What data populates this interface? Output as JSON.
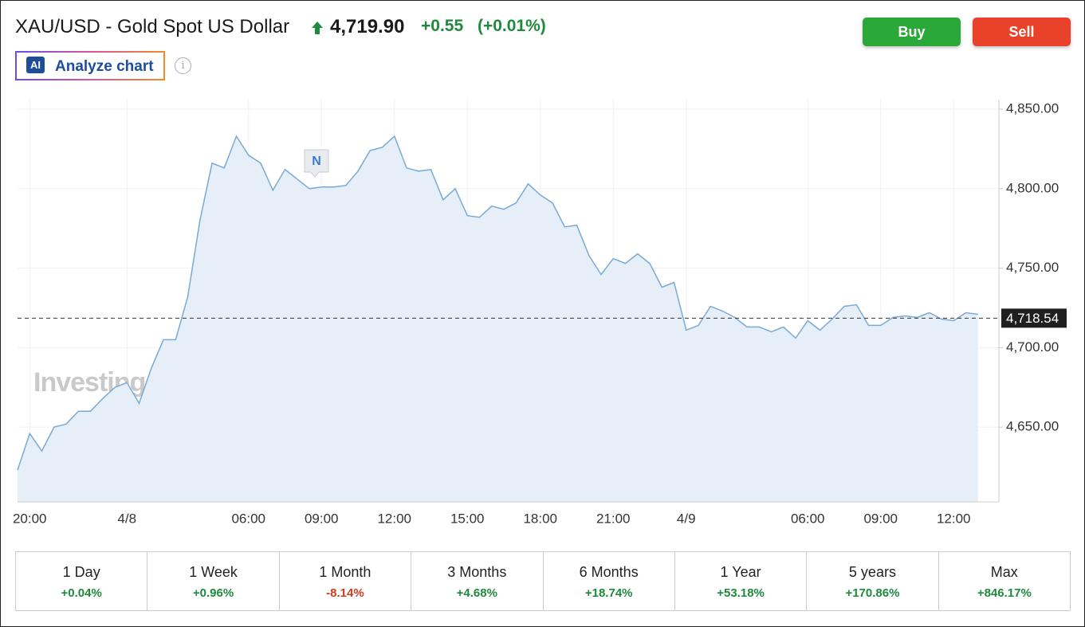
{
  "header": {
    "title": "XAU/USD - Gold Spot US Dollar",
    "price": "4,719.90",
    "change": "+0.55",
    "change_percent": "(+0.01%)",
    "buy": "Buy",
    "sell": "Sell",
    "ai_badge": "AI",
    "analyze": "Analyze chart",
    "info": "i"
  },
  "chart_data": {
    "type": "area",
    "color": "#7aaad4",
    "fill": "#e6eef7",
    "grid": true,
    "watermark": "Investing.com",
    "annotations": [
      {
        "text": "N"
      }
    ],
    "reference_line": {
      "value": 4718.54,
      "label": "4,718.54"
    },
    "ylim": [
      4603,
      4856
    ],
    "yticks": [
      {
        "value": 4650,
        "label": "4,650.00"
      },
      {
        "value": 4700,
        "label": "4,700.00"
      },
      {
        "value": 4750,
        "label": "4,750.00"
      },
      {
        "value": 4800,
        "label": "4,800.00"
      },
      {
        "value": 4850,
        "label": "4,850.00"
      }
    ],
    "categories": [
      null,
      "20:00",
      null,
      null,
      null,
      null,
      null,
      null,
      null,
      "4/8",
      null,
      null,
      null,
      null,
      null,
      null,
      null,
      null,
      null,
      "06:00",
      null,
      null,
      null,
      null,
      null,
      "09:00",
      null,
      null,
      null,
      null,
      null,
      "12:00",
      null,
      null,
      null,
      null,
      null,
      "15:00",
      null,
      null,
      null,
      null,
      null,
      "18:00",
      null,
      null,
      null,
      null,
      null,
      "21:00",
      null,
      null,
      null,
      null,
      null,
      "4/9",
      null,
      null,
      null,
      null,
      null,
      null,
      null,
      null,
      null,
      "06:00",
      null,
      null,
      null,
      null,
      null,
      "09:00",
      null,
      null,
      null,
      null,
      null,
      "12:00",
      null,
      null
    ],
    "values": [
      4623,
      4646,
      4635,
      4650,
      4652,
      4660,
      4660,
      4668,
      4675,
      4678,
      4665,
      4687,
      4705,
      4705,
      4732,
      4780,
      4816,
      4813,
      4833,
      4821,
      4816,
      4799,
      4812,
      4806,
      4800,
      4801,
      4801,
      4802,
      4811,
      4824,
      4826,
      4833,
      4813,
      4811,
      4812,
      4793,
      4800,
      4783,
      4782,
      4789,
      4787,
      4791,
      4803,
      4796,
      4791,
      4776,
      4777,
      4758,
      4746,
      4756,
      4753,
      4759,
      4753,
      4738,
      4741,
      4711,
      4714,
      4726,
      4723,
      4719,
      4713,
      4713,
      4710,
      4713,
      4706,
      4717,
      4711,
      4718,
      4726,
      4727,
      4714,
      4714,
      4719,
      4720,
      4719,
      4722,
      4718,
      4717,
      4722,
      4721
    ]
  },
  "periods": [
    {
      "label": "1 Day",
      "change": "+0.04%"
    },
    {
      "label": "1 Week",
      "change": "+0.96%"
    },
    {
      "label": "1 Month",
      "change": "-8.14%"
    },
    {
      "label": "3 Months",
      "change": "+4.68%"
    },
    {
      "label": "6 Months",
      "change": "+18.74%"
    },
    {
      "label": "1 Year",
      "change": "+53.18%"
    },
    {
      "label": "5 years",
      "change": "+170.86%"
    },
    {
      "label": "Max",
      "change": "+846.17%"
    }
  ]
}
